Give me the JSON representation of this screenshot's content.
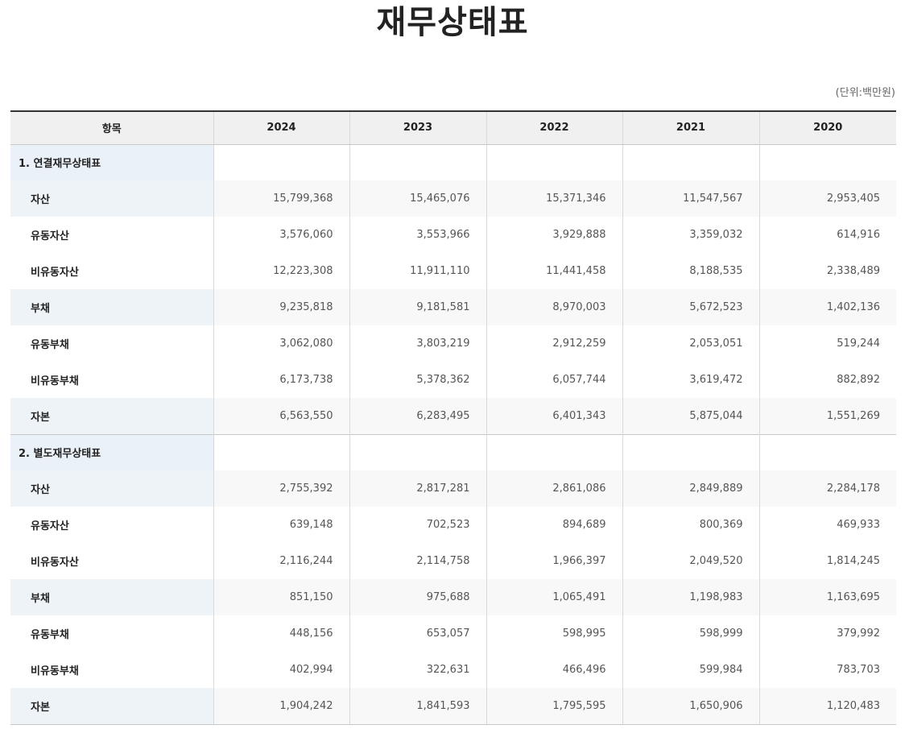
{
  "title": "재무상태표",
  "unit_note": "(단위:백만원)",
  "columns": [
    "항목",
    "2024",
    "2023",
    "2022",
    "2021",
    "2020"
  ],
  "sections": [
    {
      "name": "1. 연결재무상태표",
      "rows": [
        {
          "label": "자산",
          "major": true,
          "values": [
            "15,799,368",
            "15,465,076",
            "15,371,346",
            "11,547,567",
            "2,953,405"
          ]
        },
        {
          "label": "유동자산",
          "major": false,
          "values": [
            "3,576,060",
            "3,553,966",
            "3,929,888",
            "3,359,032",
            "614,916"
          ]
        },
        {
          "label": "비유동자산",
          "major": false,
          "values": [
            "12,223,308",
            "11,911,110",
            "11,441,458",
            "8,188,535",
            "2,338,489"
          ]
        },
        {
          "label": "부채",
          "major": true,
          "values": [
            "9,235,818",
            "9,181,581",
            "8,970,003",
            "5,672,523",
            "1,402,136"
          ]
        },
        {
          "label": "유동부채",
          "major": false,
          "values": [
            "3,062,080",
            "3,803,219",
            "2,912,259",
            "2,053,051",
            "519,244"
          ]
        },
        {
          "label": "비유동부채",
          "major": false,
          "values": [
            "6,173,738",
            "5,378,362",
            "6,057,744",
            "3,619,472",
            "882,892"
          ]
        },
        {
          "label": "자본",
          "major": true,
          "values": [
            "6,563,550",
            "6,283,495",
            "6,401,343",
            "5,875,044",
            "1,551,269"
          ]
        }
      ]
    },
    {
      "name": "2. 별도재무상태표",
      "rows": [
        {
          "label": "자산",
          "major": true,
          "values": [
            "2,755,392",
            "2,817,281",
            "2,861,086",
            "2,849,889",
            "2,284,178"
          ]
        },
        {
          "label": "유동자산",
          "major": false,
          "values": [
            "639,148",
            "702,523",
            "894,689",
            "800,369",
            "469,933"
          ]
        },
        {
          "label": "비유동자산",
          "major": false,
          "values": [
            "2,116,244",
            "2,114,758",
            "1,966,397",
            "2,049,520",
            "1,814,245"
          ]
        },
        {
          "label": "부채",
          "major": true,
          "values": [
            "851,150",
            "975,688",
            "1,065,491",
            "1,198,983",
            "1,163,695"
          ]
        },
        {
          "label": "유동부채",
          "major": false,
          "values": [
            "448,156",
            "653,057",
            "598,995",
            "598,999",
            "379,992"
          ]
        },
        {
          "label": "비유동부채",
          "major": false,
          "values": [
            "402,994",
            "322,631",
            "466,496",
            "599,984",
            "783,703"
          ]
        },
        {
          "label": "자본",
          "major": true,
          "values": [
            "1,904,242",
            "1,841,593",
            "1,795,595",
            "1,650,906",
            "1,120,483"
          ]
        }
      ]
    }
  ]
}
